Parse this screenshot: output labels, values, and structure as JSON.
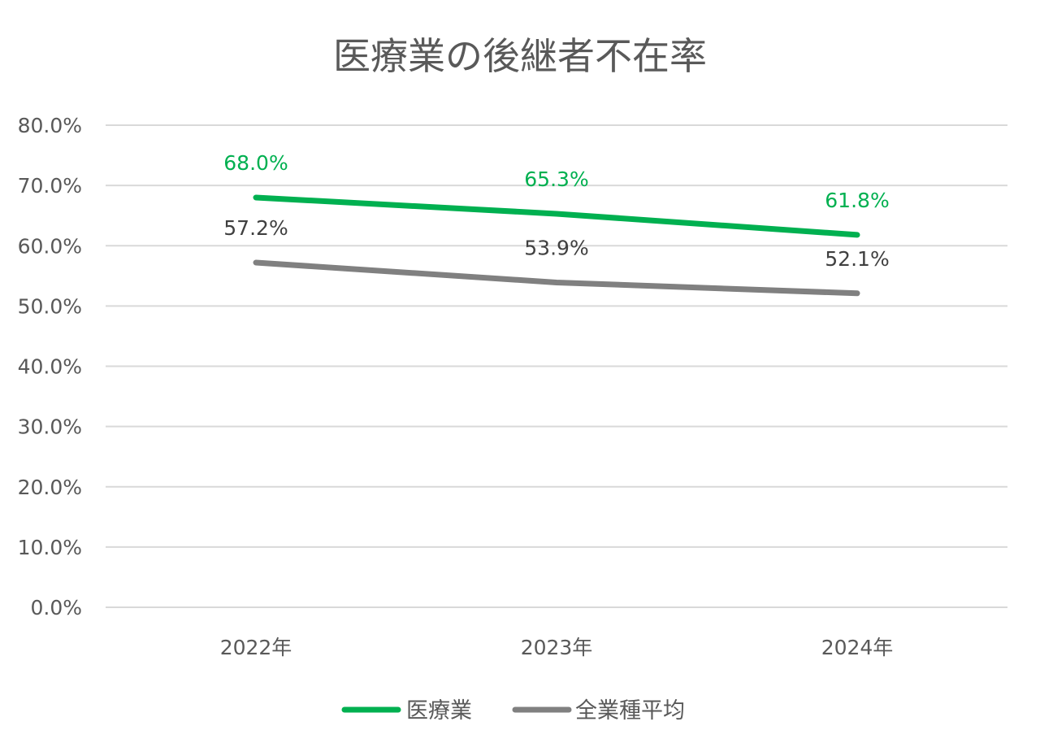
{
  "chart_data": {
    "type": "line",
    "title": "医療業の後継者不在率",
    "categories": [
      "2022年",
      "2023年",
      "2024年"
    ],
    "ylim": [
      0,
      80
    ],
    "y_ticks": [
      "0.0%",
      "10.0%",
      "20.0%",
      "30.0%",
      "40.0%",
      "50.0%",
      "60.0%",
      "70.0%",
      "80.0%"
    ],
    "y_tick_values": [
      0,
      10,
      20,
      30,
      40,
      50,
      60,
      70,
      80
    ],
    "grid": true,
    "legend_position": "bottom",
    "series": [
      {
        "name": "医療業",
        "color": "#00b050",
        "label_color": "#00b050",
        "values": [
          68.0,
          65.3,
          61.8
        ],
        "labels": [
          "68.0%",
          "65.3%",
          "61.8%"
        ]
      },
      {
        "name": "全業種平均",
        "color": "#808080",
        "label_color": "#404040",
        "values": [
          57.2,
          53.9,
          52.1
        ],
        "labels": [
          "57.2%",
          "53.9%",
          "52.1%"
        ]
      }
    ]
  }
}
